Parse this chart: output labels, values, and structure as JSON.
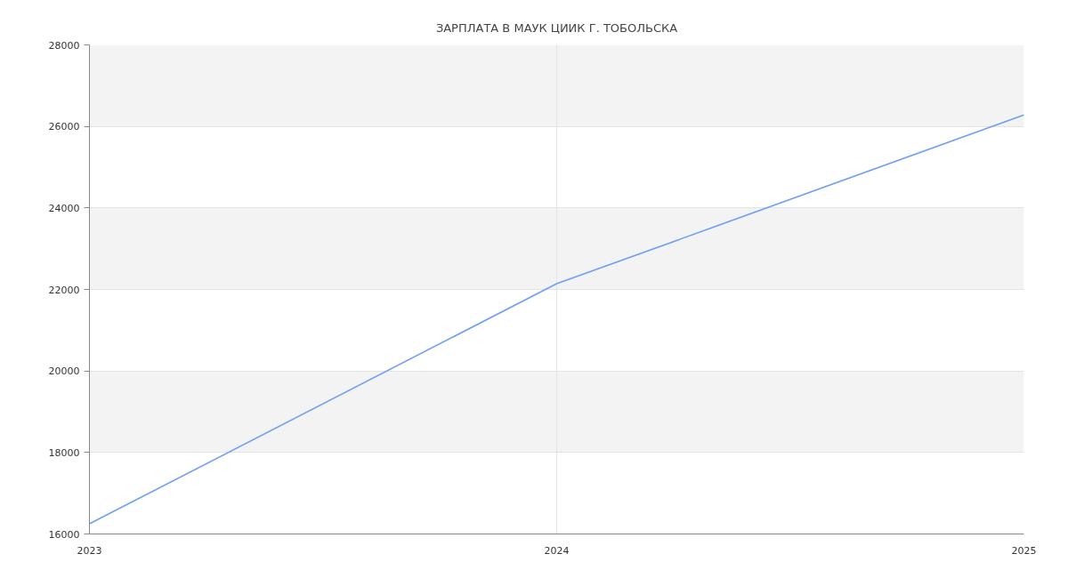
{
  "chart_data": {
    "type": "line",
    "title": "ЗАРПЛАТА В МАУК ЦИИК Г. ТОБОЛЬСКА",
    "x": [
      2023,
      2024,
      2025
    ],
    "series": [
      {
        "color": "#6f9ef5",
        "values": [
          16250,
          22140,
          26280
        ]
      }
    ],
    "xlim": [
      2023,
      2025
    ],
    "xticks": [
      2023,
      2024,
      2025
    ],
    "ylim": [
      16000,
      28000
    ],
    "yticks": [
      16000,
      18000,
      20000,
      22000,
      24000,
      26000,
      28000
    ],
    "grid": true,
    "bands": [
      {
        "axis": "y",
        "from": 18000,
        "to": 20000,
        "color": "#f3f3f3"
      },
      {
        "axis": "y",
        "from": 22000,
        "to": 24000,
        "color": "#f3f3f3"
      },
      {
        "axis": "y",
        "from": 26000,
        "to": 28000,
        "color": "#f3f3f3"
      }
    ]
  }
}
